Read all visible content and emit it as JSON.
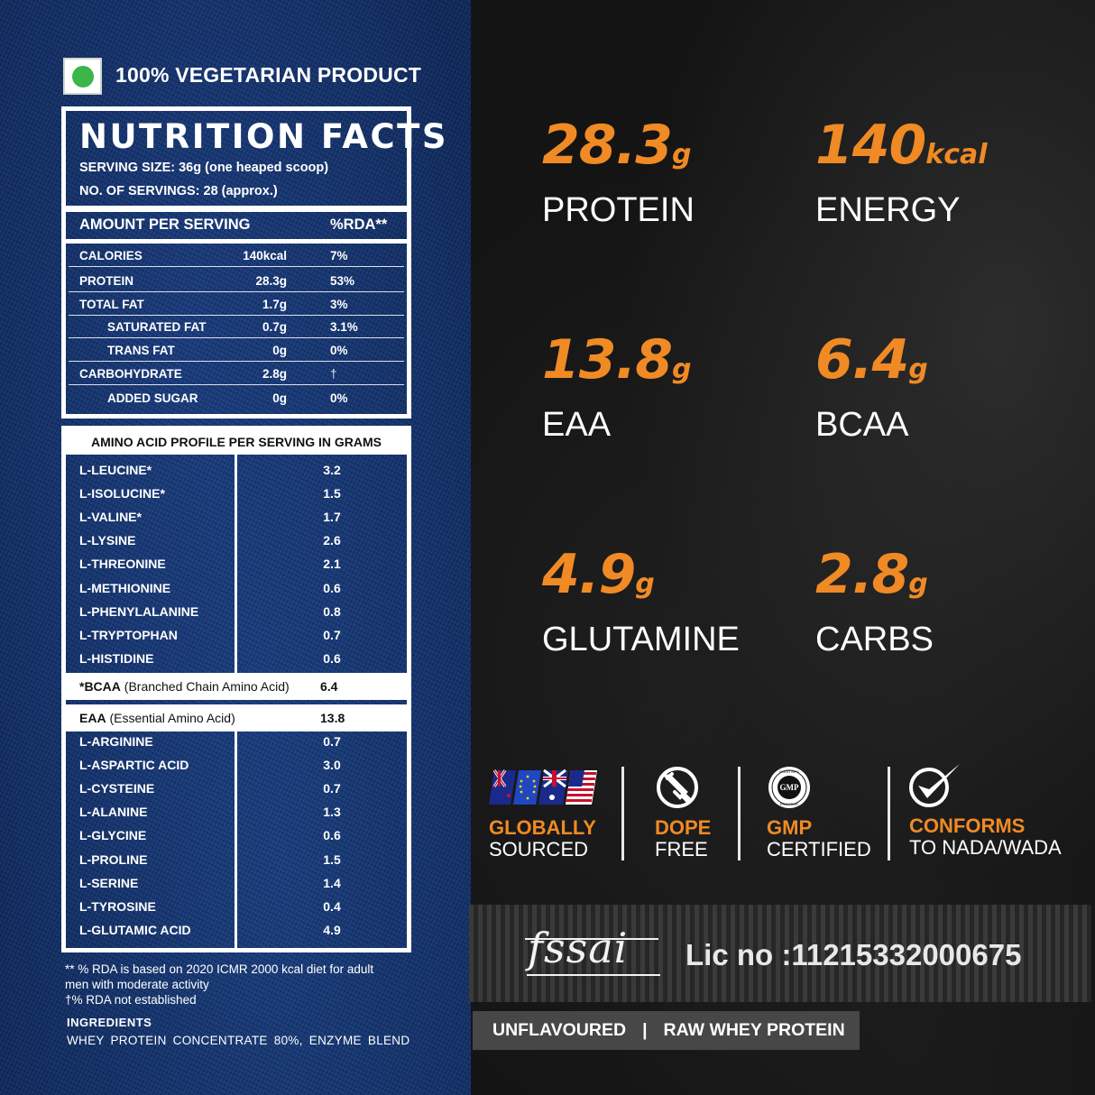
{
  "veg_badge": {
    "label": "100% VEGETARIAN PRODUCT",
    "dot_color": "#3cb54a"
  },
  "nutrition": {
    "title": "NUTRITION FACTS",
    "serving_size": "SERVING SIZE: 36g (one heaped scoop)",
    "servings": "NO. OF SERVINGS: 28 (approx.)",
    "header": {
      "amount": "AMOUNT PER SERVING",
      "rda": "%RDA**"
    },
    "rows": [
      {
        "name": "CALORIES",
        "value": "140kcal",
        "rda": "7%",
        "indent": false
      },
      {
        "name": "PROTEIN",
        "value": "28.3g",
        "rda": "53%",
        "indent": false
      },
      {
        "name": "TOTAL FAT",
        "value": "1.7g",
        "rda": "3%",
        "indent": false
      },
      {
        "name": "SATURATED FAT",
        "value": "0.7g",
        "rda": "3.1%",
        "indent": true
      },
      {
        "name": "TRANS FAT",
        "value": "0g",
        "rda": "0%",
        "indent": true
      },
      {
        "name": "CARBOHYDRATE",
        "value": "2.8g",
        "rda": "†",
        "indent": false
      },
      {
        "name": "ADDED SUGAR",
        "value": "0g",
        "rda": "0%",
        "indent": true
      }
    ]
  },
  "amino": {
    "title": "AMINO ACID PROFILE PER SERVING IN GRAMS",
    "group1": [
      {
        "name": "L-LEUCINE*",
        "value": "3.2"
      },
      {
        "name": "L-ISOLUCINE*",
        "value": "1.5"
      },
      {
        "name": "L-VALINE*",
        "value": "1.7"
      },
      {
        "name": "L-LYSINE",
        "value": "2.6"
      },
      {
        "name": "L-THREONINE",
        "value": "2.1"
      },
      {
        "name": "L-METHIONINE",
        "value": "0.6"
      },
      {
        "name": "L-PHENYLALANINE",
        "value": "0.8"
      },
      {
        "name": "L-TRYPTOPHAN",
        "value": "0.7"
      },
      {
        "name": "L-HISTIDINE",
        "value": "0.6"
      }
    ],
    "bcaa": {
      "abbr": "*BCAA",
      "desc": "(Branched Chain Amino Acid)",
      "value": "6.4"
    },
    "eaa": {
      "abbr": "EAA",
      "desc": "(Essential Amino Acid)",
      "value": "13.8"
    },
    "group2": [
      {
        "name": "L-ARGININE",
        "value": "0.7"
      },
      {
        "name": "L-ASPARTIC ACID",
        "value": "3.0"
      },
      {
        "name": "L-CYSTEINE",
        "value": "0.7"
      },
      {
        "name": "L-ALANINE",
        "value": "1.3"
      },
      {
        "name": "L-GLYCINE",
        "value": "0.6"
      },
      {
        "name": "L-PROLINE",
        "value": "1.5"
      },
      {
        "name": "L-SERINE",
        "value": "1.4"
      },
      {
        "name": "L-TYROSINE",
        "value": "0.4"
      },
      {
        "name": "L-GLUTAMIC ACID",
        "value": "4.9"
      }
    ]
  },
  "footnotes": {
    "rda_note_1": "** % RDA is based on 2020 ICMR 2000 kcal diet for adult",
    "rda_note_2": "men with moderate activity",
    "dagger_note": "†% RDA not established",
    "ingredients_heading": "INGREDIENTS",
    "ingredients": "WHEY PROTEIN CONCENTRATE 80%, ENZYME BLEND"
  },
  "highlights": [
    {
      "value": "28.3",
      "unit": "g",
      "label": "PROTEIN"
    },
    {
      "value": "140",
      "unit": "kcal",
      "label": "ENERGY"
    },
    {
      "value": "13.8",
      "unit": "g",
      "label": "EAA"
    },
    {
      "value": "6.4",
      "unit": "g",
      "label": "BCAA"
    },
    {
      "value": "4.9",
      "unit": "g",
      "label": "GLUTAMINE"
    },
    {
      "value": "2.8",
      "unit": "g",
      "label": "CARBS"
    }
  ],
  "badges": [
    {
      "line1": "GLOBALLY",
      "line2": "SOURCED",
      "icon": "flags-icon"
    },
    {
      "line1": "DOPE",
      "line2": "FREE",
      "icon": "no-syringe-icon"
    },
    {
      "line1": "GMP",
      "line2": "CERTIFIED",
      "icon": "gmp-seal-icon",
      "seal_text": "GMP",
      "seal_ring": "GOOD MANUFACTURING PRACTICE"
    },
    {
      "line1": "CONFORMS",
      "line2": "TO NADA/WADA",
      "icon": "checkmark-icon"
    }
  ],
  "fssai": {
    "logo": "fssai",
    "license": "Lic no :11215332000675"
  },
  "variant": {
    "flavour": "UNFLAVOURED",
    "separator": "|",
    "product": "RAW WHEY PROTEIN"
  },
  "colors": {
    "accent_orange": "#f08a25",
    "denim_blue": "#17356b",
    "slate": "#141414",
    "veg_green": "#3cb54a"
  }
}
